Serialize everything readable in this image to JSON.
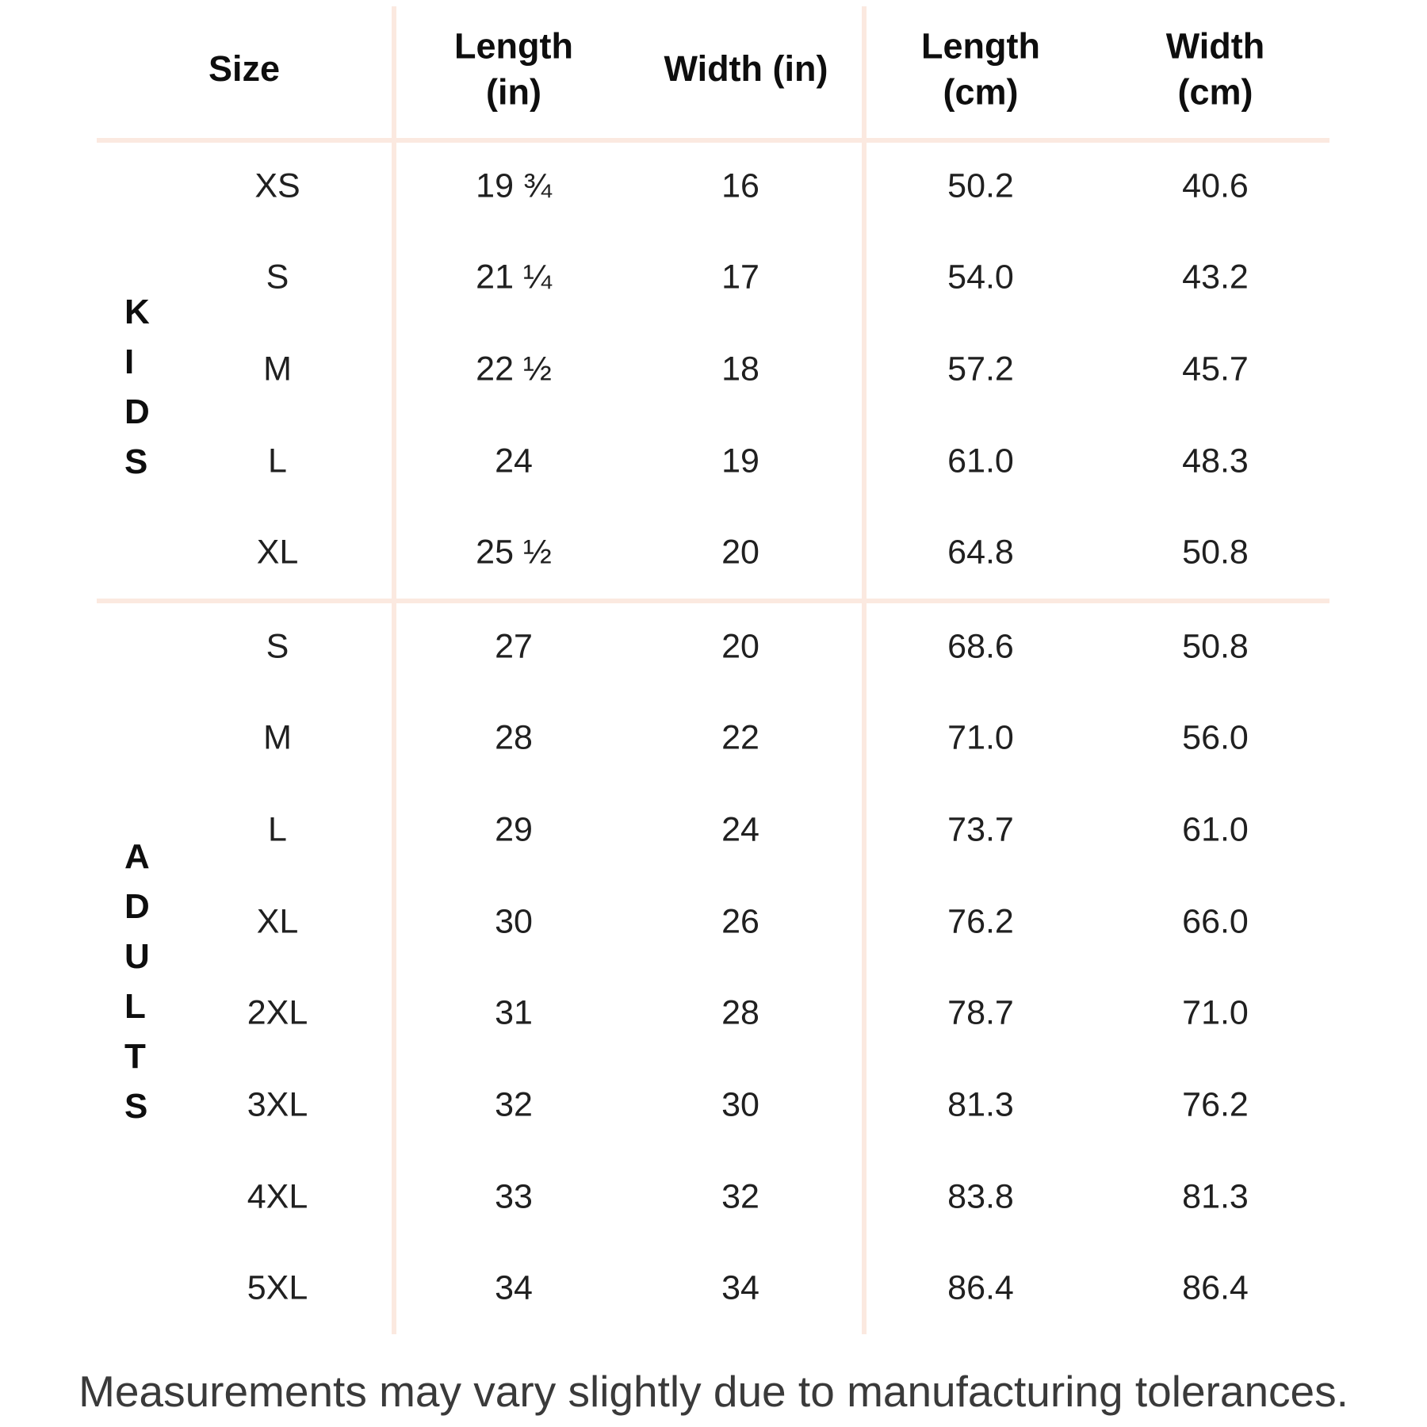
{
  "colors": {
    "background": "#ffffff",
    "divider_line": "#fbe9e0",
    "header_text": "#0e0e0e",
    "body_text": "#202020",
    "footnote_text": "#3a3a3a"
  },
  "table": {
    "headers": {
      "size": "Size",
      "length_in": "Length (in)",
      "width_in": "Width (in)",
      "length_cm": "Length (cm)",
      "width_cm": "Width (cm)"
    },
    "kids": {
      "label": "KIDS",
      "rows": [
        {
          "size": "XS",
          "length_in": "19 ¾",
          "width_in": "16",
          "length_cm": "50.2",
          "width_cm": "40.6"
        },
        {
          "size": "S",
          "length_in": "21 ¼",
          "width_in": "17",
          "length_cm": "54.0",
          "width_cm": "43.2"
        },
        {
          "size": "M",
          "length_in": "22 ½",
          "width_in": "18",
          "length_cm": "57.2",
          "width_cm": "45.7"
        },
        {
          "size": "L",
          "length_in": "24",
          "width_in": "19",
          "length_cm": "61.0",
          "width_cm": "48.3"
        },
        {
          "size": "XL",
          "length_in": "25 ½",
          "width_in": "20",
          "length_cm": "64.8",
          "width_cm": "50.8"
        }
      ]
    },
    "adults": {
      "label": "ADULTS",
      "rows": [
        {
          "size": "S",
          "length_in": "27",
          "width_in": "20",
          "length_cm": "68.6",
          "width_cm": "50.8"
        },
        {
          "size": "M",
          "length_in": "28",
          "width_in": "22",
          "length_cm": "71.0",
          "width_cm": "56.0"
        },
        {
          "size": "L",
          "length_in": "29",
          "width_in": "24",
          "length_cm": "73.7",
          "width_cm": "61.0"
        },
        {
          "size": "XL",
          "length_in": "30",
          "width_in": "26",
          "length_cm": "76.2",
          "width_cm": "66.0"
        },
        {
          "size": "2XL",
          "length_in": "31",
          "width_in": "28",
          "length_cm": "78.7",
          "width_cm": "71.0"
        },
        {
          "size": "3XL",
          "length_in": "32",
          "width_in": "30",
          "length_cm": "81.3",
          "width_cm": "76.2"
        },
        {
          "size": "4XL",
          "length_in": "33",
          "width_in": "32",
          "length_cm": "83.8",
          "width_cm": "81.3"
        },
        {
          "size": "5XL",
          "length_in": "34",
          "width_in": "34",
          "length_cm": "86.4",
          "width_cm": "86.4"
        }
      ]
    }
  },
  "footnote": "Measurements may vary slightly due to manufacturing tolerances."
}
